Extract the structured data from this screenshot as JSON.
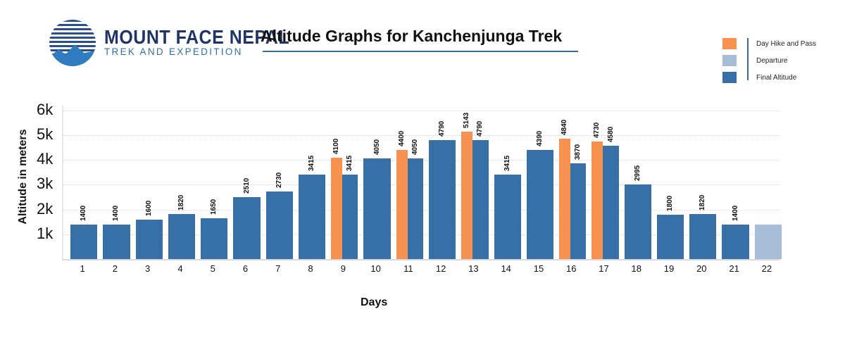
{
  "brand": {
    "name": "MOUNT FACE NEPAL",
    "tagline": "TREK AND EXPEDITION"
  },
  "colors": {
    "final": "#3670a6",
    "pass": "#f79150",
    "departure": "#a7bcd6"
  },
  "legend": [
    {
      "label": "Day Hike and Pass",
      "color": "#f79150"
    },
    {
      "label": "Departure",
      "color": "#a7bcd6"
    },
    {
      "label": "Final  Altitude",
      "color": "#3670a6"
    }
  ],
  "chart_data": {
    "type": "bar",
    "title": "Altitude Graphs for Kanchenjunga Trek",
    "xlabel": "Days",
    "ylabel": "Altitude in meters",
    "ylim": [
      0,
      6000
    ],
    "y_ticks": [
      "1k",
      "2k",
      "3k",
      "4k",
      "5k",
      "6k"
    ],
    "categories": [
      "1",
      "2",
      "3",
      "4",
      "5",
      "6",
      "7",
      "8",
      "9",
      "10",
      "11",
      "12",
      "13",
      "14",
      "15",
      "16",
      "17",
      "18",
      "19",
      "20",
      "21",
      "22"
    ],
    "series": [
      {
        "name": "Final  Altitude",
        "values": [
          1400,
          1400,
          1600,
          1820,
          1650,
          2510,
          2730,
          3415,
          3415,
          4050,
          4050,
          4790,
          4790,
          3415,
          4390,
          3870,
          4580,
          2995,
          1800,
          1820,
          1400,
          null
        ]
      },
      {
        "name": "Day Hike and Pass",
        "values": [
          null,
          null,
          null,
          null,
          null,
          null,
          null,
          null,
          4100,
          null,
          4400,
          null,
          5143,
          null,
          null,
          4840,
          4730,
          null,
          null,
          null,
          null,
          null
        ]
      },
      {
        "name": "Departure",
        "values": [
          null,
          null,
          null,
          null,
          null,
          null,
          null,
          null,
          null,
          null,
          null,
          null,
          null,
          null,
          null,
          null,
          null,
          null,
          null,
          null,
          null,
          1400
        ]
      }
    ],
    "grid": true,
    "legend_position": "top-right"
  }
}
